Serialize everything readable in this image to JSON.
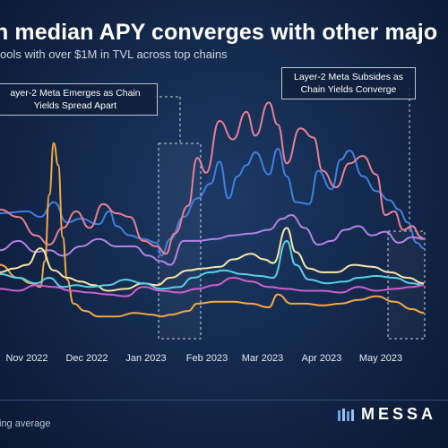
{
  "header": {
    "title": "n median APY converges with other majo",
    "subtitle": "ools with over $1M in TVL across top chains"
  },
  "annotations": [
    {
      "lines": [
        "ayer-2 Meta Emerges as Chain",
        "Yields Spread Apart"
      ]
    },
    {
      "lines": [
        "Layer-2 Meta Subsides as",
        "Chain Yields Converge"
      ]
    }
  ],
  "footer": {
    "note": "ing average",
    "brand": "MESSA"
  },
  "colors": {
    "blue": "#3f7fe0",
    "pink": "#e77f95",
    "purple": "#b183e6",
    "orange": "#f5a744",
    "yellow": "#f8e6a8",
    "cyan": "#5ad0e6",
    "magenta": "#d05fcf"
  },
  "chart_data": {
    "type": "line",
    "x_start": "2022-10-13",
    "x_end": "2023-05-31",
    "x_ticks": [
      "Nov 2022",
      "Dec 2022",
      "Jan 2023",
      "Feb 2023",
      "Mar 2023",
      "Apr 2023",
      "May 2023"
    ],
    "grid": false,
    "series": [
      {
        "color": "#3f7fe0",
        "values": [
          [
            0,
            6.8
          ],
          [
            30,
            6.9
          ],
          [
            45,
            6.6
          ],
          [
            60,
            7.4
          ],
          [
            75,
            6.3
          ],
          [
            90,
            6.5
          ],
          [
            110,
            6.2
          ],
          [
            122,
            6.9
          ],
          [
            130,
            6.1
          ],
          [
            145,
            5.6
          ],
          [
            160,
            5.4
          ],
          [
            175,
            5.2
          ],
          [
            180,
            4.5
          ],
          [
            190,
            5.4
          ],
          [
            205,
            6.6
          ],
          [
            220,
            7.6
          ],
          [
            235,
            8.4
          ],
          [
            245,
            9.6
          ],
          [
            255,
            7.6
          ],
          [
            265,
            8.8
          ],
          [
            275,
            9.4
          ],
          [
            285,
            10.1
          ],
          [
            300,
            8.9
          ],
          [
            310,
            10.3
          ],
          [
            320,
            8.8
          ],
          [
            330,
            7.4
          ],
          [
            345,
            7.3
          ],
          [
            355,
            9.1
          ],
          [
            370,
            8.1
          ],
          [
            380,
            9.7
          ],
          [
            390,
            10.2
          ],
          [
            405,
            8.8
          ],
          [
            420,
            8.0
          ],
          [
            435,
            7.5
          ],
          [
            445,
            7.0
          ],
          [
            455,
            6.3
          ],
          [
            465,
            5.2
          ],
          [
            473,
            4.9
          ]
        ]
      },
      {
        "color": "#e77f95",
        "values": [
          [
            0,
            7.0
          ],
          [
            20,
            6.6
          ],
          [
            40,
            5.6
          ],
          [
            55,
            5.1
          ],
          [
            70,
            6.0
          ],
          [
            85,
            6.9
          ],
          [
            100,
            6.0
          ],
          [
            115,
            7.3
          ],
          [
            130,
            6.8
          ],
          [
            145,
            6.6
          ],
          [
            160,
            5.3
          ],
          [
            175,
            5.0
          ],
          [
            185,
            4.6
          ],
          [
            195,
            5.7
          ],
          [
            210,
            7.2
          ],
          [
            220,
            9.8
          ],
          [
            230,
            9.0
          ],
          [
            245,
            11.8
          ],
          [
            260,
            10.8
          ],
          [
            275,
            12.3
          ],
          [
            285,
            11.0
          ],
          [
            300,
            12.8
          ],
          [
            310,
            11.6
          ],
          [
            320,
            9.5
          ],
          [
            335,
            11.4
          ],
          [
            350,
            10.9
          ],
          [
            360,
            9.1
          ],
          [
            375,
            8.2
          ],
          [
            390,
            9.5
          ],
          [
            405,
            9.9
          ],
          [
            420,
            8.9
          ],
          [
            430,
            6.7
          ],
          [
            440,
            6.9
          ],
          [
            450,
            5.9
          ],
          [
            460,
            6.1
          ],
          [
            470,
            5.5
          ],
          [
            473,
            5.4
          ]
        ]
      },
      {
        "color": "#b183e6",
        "values": [
          [
            0,
            4.8
          ],
          [
            20,
            5.3
          ],
          [
            40,
            4.7
          ],
          [
            55,
            4.8
          ],
          [
            70,
            4.5
          ],
          [
            90,
            5.0
          ],
          [
            110,
            5.4
          ],
          [
            130,
            5.0
          ],
          [
            150,
            5.0
          ],
          [
            165,
            4.5
          ],
          [
            180,
            4.2
          ],
          [
            190,
            4.0
          ],
          [
            205,
            5.3
          ],
          [
            220,
            5.3
          ],
          [
            240,
            5.4
          ],
          [
            260,
            5.6
          ],
          [
            280,
            5.7
          ],
          [
            300,
            5.9
          ],
          [
            315,
            6.5
          ],
          [
            325,
            6.7
          ],
          [
            340,
            6.0
          ],
          [
            355,
            5.1
          ],
          [
            370,
            5.3
          ],
          [
            385,
            5.9
          ],
          [
            400,
            6.1
          ],
          [
            415,
            5.6
          ],
          [
            430,
            5.8
          ],
          [
            445,
            5.2
          ],
          [
            460,
            5.5
          ],
          [
            473,
            5.4
          ]
        ]
      },
      {
        "color": "#f5a744",
        "values": [
          [
            0,
            4.0
          ],
          [
            20,
            3.3
          ],
          [
            35,
            3.0
          ],
          [
            45,
            2.8
          ],
          [
            50,
            4.2
          ],
          [
            55,
            7.8
          ],
          [
            60,
            10.6
          ],
          [
            65,
            9.4
          ],
          [
            70,
            5.5
          ],
          [
            75,
            3.2
          ],
          [
            82,
            1.9
          ],
          [
            95,
            1.5
          ],
          [
            110,
            1.2
          ],
          [
            130,
            1.2
          ],
          [
            150,
            1.4
          ],
          [
            170,
            1.3
          ],
          [
            180,
            1.2
          ],
          [
            190,
            1.3
          ],
          [
            210,
            1.5
          ],
          [
            220,
            1.9
          ],
          [
            240,
            2.0
          ],
          [
            260,
            2.0
          ],
          [
            280,
            1.9
          ],
          [
            300,
            1.7
          ],
          [
            310,
            2.4
          ],
          [
            325,
            1.9
          ],
          [
            340,
            1.9
          ],
          [
            360,
            1.8
          ],
          [
            380,
            1.9
          ],
          [
            400,
            2.1
          ],
          [
            420,
            2.3
          ],
          [
            440,
            2.0
          ],
          [
            460,
            1.6
          ],
          [
            473,
            1.4
          ]
        ]
      },
      {
        "color": "#f8e6a8",
        "values": [
          [
            0,
            3.6
          ],
          [
            15,
            3.8
          ],
          [
            30,
            4.0
          ],
          [
            45,
            4.9
          ],
          [
            60,
            3.7
          ],
          [
            75,
            3.3
          ],
          [
            90,
            3.1
          ],
          [
            105,
            2.9
          ],
          [
            120,
            2.6
          ],
          [
            140,
            2.7
          ],
          [
            160,
            3.0
          ],
          [
            175,
            2.9
          ],
          [
            190,
            3.3
          ],
          [
            210,
            3.7
          ],
          [
            225,
            3.8
          ],
          [
            245,
            3.9
          ],
          [
            260,
            4.3
          ],
          [
            280,
            4.6
          ],
          [
            295,
            4.3
          ],
          [
            305,
            4.1
          ],
          [
            320,
            6.0
          ],
          [
            330,
            4.7
          ],
          [
            345,
            3.8
          ],
          [
            360,
            3.6
          ],
          [
            375,
            3.6
          ],
          [
            395,
            4.0
          ],
          [
            415,
            3.9
          ],
          [
            435,
            3.6
          ],
          [
            455,
            3.3
          ],
          [
            473,
            3.0
          ]
        ]
      },
      {
        "color": "#5ad0e6",
        "values": [
          [
            0,
            3.5
          ],
          [
            20,
            3.3
          ],
          [
            40,
            3.0
          ],
          [
            55,
            3.3
          ],
          [
            70,
            2.8
          ],
          [
            85,
            2.9
          ],
          [
            100,
            2.8
          ],
          [
            120,
            2.9
          ],
          [
            140,
            3.2
          ],
          [
            160,
            3.0
          ],
          [
            180,
            2.7
          ],
          [
            200,
            2.8
          ],
          [
            215,
            3.3
          ],
          [
            235,
            3.6
          ],
          [
            250,
            3.7
          ],
          [
            270,
            3.5
          ],
          [
            290,
            3.4
          ],
          [
            305,
            3.3
          ],
          [
            320,
            5.3
          ],
          [
            330,
            4.0
          ],
          [
            345,
            3.2
          ],
          [
            365,
            3.0
          ],
          [
            385,
            3.1
          ],
          [
            400,
            3.3
          ],
          [
            420,
            3.4
          ],
          [
            440,
            3.3
          ],
          [
            460,
            3.0
          ],
          [
            473,
            2.9
          ]
        ]
      },
      {
        "color": "#d05fcf",
        "values": [
          [
            0,
            2.7
          ],
          [
            20,
            2.6
          ],
          [
            40,
            2.9
          ],
          [
            60,
            2.8
          ],
          [
            80,
            2.6
          ],
          [
            100,
            2.5
          ],
          [
            120,
            2.4
          ],
          [
            140,
            2.3
          ],
          [
            160,
            2.8
          ],
          [
            180,
            2.6
          ],
          [
            200,
            2.5
          ],
          [
            220,
            2.7
          ],
          [
            240,
            2.9
          ],
          [
            260,
            3.3
          ],
          [
            280,
            3.1
          ],
          [
            300,
            2.8
          ],
          [
            320,
            2.7
          ],
          [
            340,
            2.6
          ],
          [
            360,
            2.6
          ],
          [
            380,
            2.5
          ],
          [
            400,
            2.8
          ],
          [
            420,
            2.6
          ],
          [
            440,
            2.7
          ],
          [
            460,
            2.8
          ],
          [
            473,
            2.9
          ]
        ]
      }
    ]
  }
}
